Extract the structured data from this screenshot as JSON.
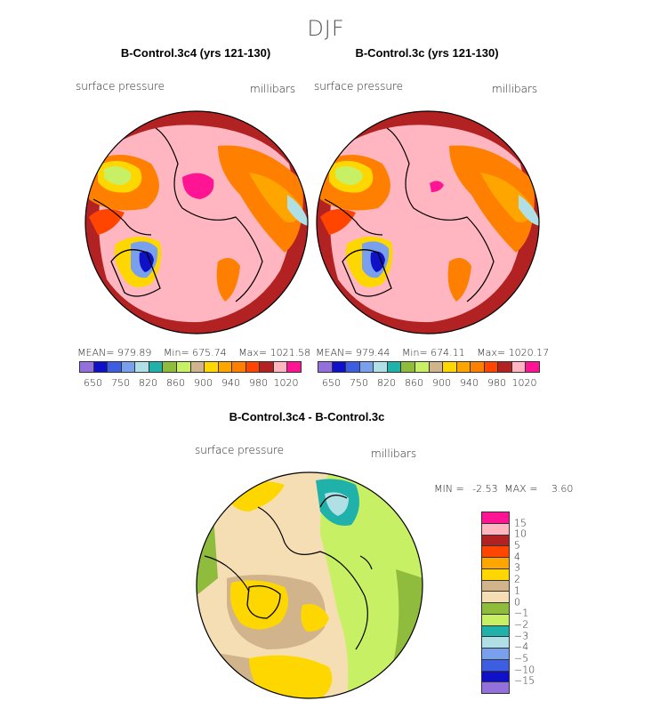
{
  "season": "DJF",
  "panels": [
    {
      "title": "B-Control.3c4 (yrs 121-130)",
      "var_label": "surface pressure",
      "unit_label": "millibars",
      "mean_label": "MEAN=",
      "mean": "979.89",
      "min_label": "Min=",
      "min": "675.74",
      "max_label": "Max=",
      "max": "1021.58"
    },
    {
      "title": "B-Control.3c (yrs 121-130)",
      "var_label": "surface pressure",
      "unit_label": "millibars",
      "mean_label": "MEAN=",
      "mean": "979.44",
      "min_label": "Min=",
      "min": "674.11",
      "max_label": "Max=",
      "max": "1020.17"
    }
  ],
  "abs_colorbar": {
    "colors": [
      "#9370db",
      "#1010c8",
      "#3d5ee0",
      "#79a0ec",
      "#b0e0e6",
      "#20b2aa",
      "#8fbc3c",
      "#c8f064",
      "#d2b48c",
      "#ffd700",
      "#ffa500",
      "#ff7f00",
      "#ff4500",
      "#b22222",
      "#ffb6c1",
      "#ff1493"
    ],
    "ticks": [
      "650",
      "750",
      "820",
      "860",
      "900",
      "940",
      "980",
      "1020"
    ]
  },
  "diff": {
    "title": "B-Control.3c4 - B-Control.3c",
    "var_label": "surface pressure",
    "unit_label": "millibars",
    "min_label": "MIN =",
    "min": "-2.53",
    "max_label": "MAX =",
    "max": "3.60",
    "colorbar": {
      "colors": [
        "#ff1493",
        "#ffb6c1",
        "#b22222",
        "#ff4500",
        "#ffa500",
        "#ffd700",
        "#d2b48c",
        "#f5deb3",
        "#8fbc3c",
        "#c8f064",
        "#20b2aa",
        "#b0e0e6",
        "#79a0ec",
        "#3d5ee0",
        "#1010c8",
        "#9370db"
      ],
      "ticks": [
        "15",
        "10",
        "5",
        "4",
        "3",
        "2",
        "1",
        "0",
        "−1",
        "−2",
        "−3",
        "−4",
        "−5",
        "−10",
        "−15"
      ]
    }
  }
}
